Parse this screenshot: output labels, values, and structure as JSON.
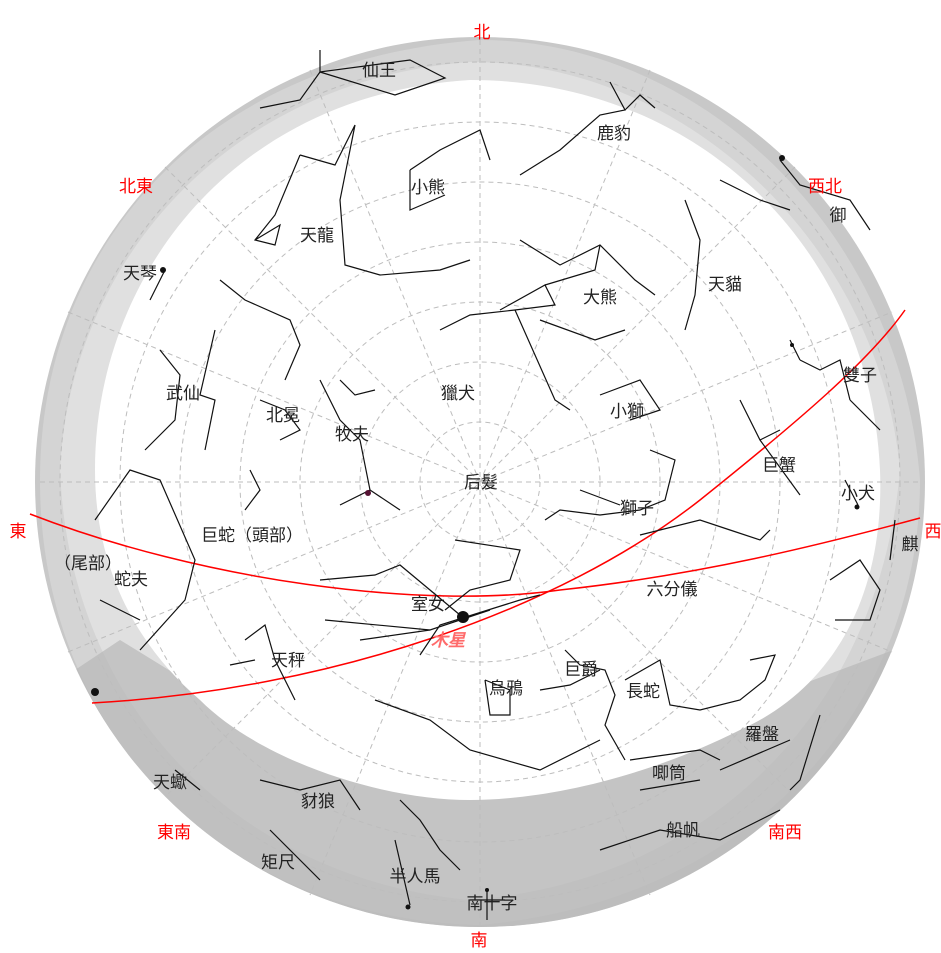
{
  "directions": {
    "n": "北",
    "ne": "北東",
    "nw": "西北",
    "e": "東",
    "w": "西",
    "se": "東南",
    "sw": "南西",
    "s": "南"
  },
  "constellations": {
    "cepheus": "仙王",
    "camelopardalis": "鹿豹",
    "ursa_minor": "小熊",
    "draco": "天龍",
    "lyra": "天琴",
    "ursa_major": "大熊",
    "lynx": "天貓",
    "hercules": "武仙",
    "corona_borealis": "北冕",
    "bootes": "牧夫",
    "canes_venatici": "獵犬",
    "leo_minor": "小獅",
    "gemini": "雙子",
    "cancer": "巨蟹",
    "coma_berenices": "后髮",
    "leo": "獅子",
    "canis_minor": "小犬",
    "serpens_caput": "巨蛇（頭部）",
    "serpens_cauda": "（尾部）",
    "ophiuchus": "蛇夫",
    "virgo": "室女",
    "sextans": "六分儀",
    "libra": "天秤",
    "crater": "巨爵",
    "corvus": "烏鴉",
    "hydra": "長蛇",
    "pyxis": "羅盤",
    "antlia": "唧筒",
    "lupus": "豺狼",
    "vela": "船帆",
    "centaurus": "半人馬",
    "crux": "南十字",
    "norma": "矩尺",
    "scorpius_partial": "天蠍",
    "auriga_partial": "御",
    "monoceros_partial": "麒"
  },
  "planets": [
    {
      "name": "木星",
      "color": "#ff6a6a",
      "symbol": "planet-dot-icon"
    }
  ],
  "colors": {
    "ecliptic_lines": "#ff0000",
    "direction_labels": "#ff0000",
    "sky_disk": "#ffffff",
    "horizon_band_outer": "#c8c8c8",
    "horizon_band_inner": "#dcdcdc"
  }
}
